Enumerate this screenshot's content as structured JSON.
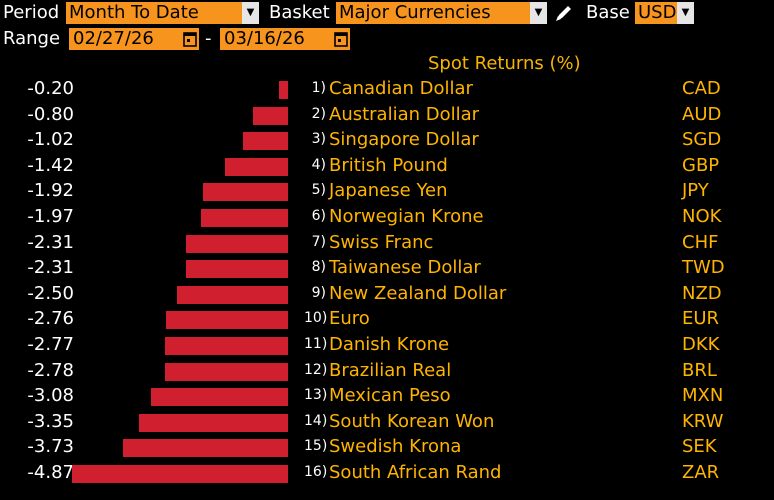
{
  "toolbar": {
    "period_label": "Period",
    "period_value": "Month To Date",
    "basket_label": "Basket",
    "basket_value": "Major Currencies",
    "base_label": "Base",
    "base_value": "USD",
    "range_label": "Range",
    "range_start": "02/27/26",
    "range_sep": "-",
    "range_end": "03/16/26"
  },
  "header": {
    "title": "Spot Returns (%)"
  },
  "colors": {
    "accent": "#f7941d",
    "bar": "#d0202f",
    "text_amber": "#ffb400"
  },
  "chart_data": {
    "type": "bar",
    "title": "Spot Returns (%)",
    "orientation": "horizontal",
    "xlim": [
      -4.87,
      0
    ],
    "series": [
      {
        "name": "Spot Returns (%)",
        "values": [
          -0.2,
          -0.8,
          -1.02,
          -1.42,
          -1.92,
          -1.97,
          -2.31,
          -2.31,
          -2.5,
          -2.76,
          -2.77,
          -2.78,
          -3.08,
          -3.35,
          -3.73,
          -4.87
        ]
      }
    ],
    "categories": [
      "Canadian Dollar",
      "Australian Dollar",
      "Singapore Dollar",
      "British Pound",
      "Japanese Yen",
      "Norwegian Krone",
      "Swiss Franc",
      "Taiwanese Dollar",
      "New Zealand Dollar",
      "Euro",
      "Danish Krone",
      "Brazilian Real",
      "Mexican Peso",
      "South Korean Won",
      "Swedish Krona",
      "South African Rand"
    ]
  },
  "rows": [
    {
      "value": "-0.20",
      "rank": "1)",
      "name": "Canadian Dollar",
      "code": "CAD"
    },
    {
      "value": "-0.80",
      "rank": "2)",
      "name": "Australian Dollar",
      "code": "AUD"
    },
    {
      "value": "-1.02",
      "rank": "3)",
      "name": "Singapore Dollar",
      "code": "SGD"
    },
    {
      "value": "-1.42",
      "rank": "4)",
      "name": "British Pound",
      "code": "GBP"
    },
    {
      "value": "-1.92",
      "rank": "5)",
      "name": "Japanese Yen",
      "code": "JPY"
    },
    {
      "value": "-1.97",
      "rank": "6)",
      "name": "Norwegian Krone",
      "code": "NOK"
    },
    {
      "value": "-2.31",
      "rank": "7)",
      "name": "Swiss Franc",
      "code": "CHF"
    },
    {
      "value": "-2.31",
      "rank": "8)",
      "name": "Taiwanese Dollar",
      "code": "TWD"
    },
    {
      "value": "-2.50",
      "rank": "9)",
      "name": "New Zealand Dollar",
      "code": "NZD"
    },
    {
      "value": "-2.76",
      "rank": "10)",
      "name": "Euro",
      "code": "EUR"
    },
    {
      "value": "-2.77",
      "rank": "11)",
      "name": "Danish Krone",
      "code": "DKK"
    },
    {
      "value": "-2.78",
      "rank": "12)",
      "name": "Brazilian Real",
      "code": "BRL"
    },
    {
      "value": "-3.08",
      "rank": "13)",
      "name": "Mexican Peso",
      "code": "MXN"
    },
    {
      "value": "-3.35",
      "rank": "14)",
      "name": "South Korean Won",
      "code": "KRW"
    },
    {
      "value": "-3.73",
      "rank": "15)",
      "name": "Swedish Krona",
      "code": "SEK"
    },
    {
      "value": "-4.87",
      "rank": "16)",
      "name": "South African Rand",
      "code": "ZAR"
    }
  ]
}
